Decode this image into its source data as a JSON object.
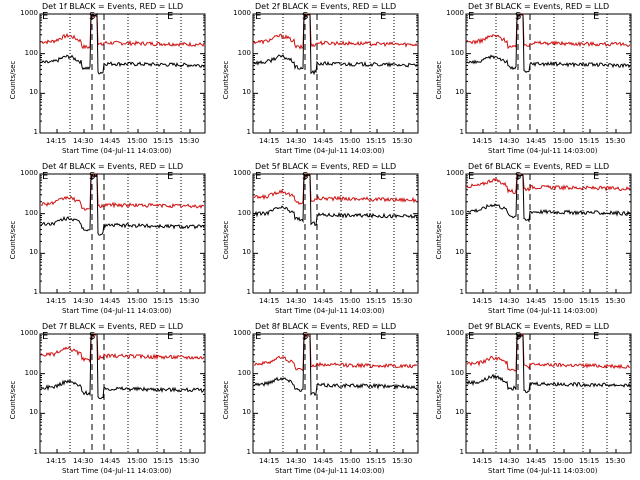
{
  "colors": {
    "events": "#000000",
    "lld": "#d01010",
    "frame": "#000000"
  },
  "chart_data": [
    {
      "type": "line",
      "title": "Det 1f BLACK = Events, RED = LLD",
      "xlabel": "Start Time (04-Jul-11 14:03:00)",
      "ylabel": "Counts/sec",
      "yscale": "log",
      "ylim": [
        1,
        1000
      ],
      "xticks": [
        "14:15",
        "14:30",
        "14:45",
        "15:00",
        "15:15",
        "15:30"
      ],
      "yticks": [
        "1",
        "10",
        "100",
        "1000"
      ],
      "markers": [
        "E",
        "S",
        "E"
      ],
      "events_level": 60,
      "lld_level": 200
    },
    {
      "type": "line",
      "title": "Det 2f BLACK = Events, RED = LLD",
      "xlabel": "Start Time (04-Jul-11 14:03:00)",
      "ylabel": "Counts/sec",
      "yscale": "log",
      "ylim": [
        1,
        1000
      ],
      "xticks": [
        "14:15",
        "14:30",
        "14:45",
        "15:00",
        "15:15",
        "15:30"
      ],
      "yticks": [
        "1",
        "10",
        "100",
        "1000"
      ],
      "markers": [
        "E",
        "S",
        "E"
      ],
      "events_level": 60,
      "lld_level": 200
    },
    {
      "type": "line",
      "title": "Det 3f BLACK = Events, RED = LLD",
      "xlabel": "Start Time (04-Jul-11 14:03:00)",
      "ylabel": "Counts/sec",
      "yscale": "log",
      "ylim": [
        1,
        1000
      ],
      "xticks": [
        "14:15",
        "14:30",
        "14:45",
        "15:00",
        "15:15",
        "15:30"
      ],
      "yticks": [
        "1",
        "10",
        "100",
        "1000"
      ],
      "markers": [
        "E",
        "S",
        "E"
      ],
      "events_level": 60,
      "lld_level": 200
    },
    {
      "type": "line",
      "title": "Det 4f BLACK = Events, RED = LLD",
      "xlabel": "Start Time (04-Jul-11 14:03:00)",
      "ylabel": "Counts/sec",
      "yscale": "log",
      "ylim": [
        1,
        1000
      ],
      "xticks": [
        "14:15",
        "14:30",
        "14:45",
        "15:00",
        "15:15",
        "15:30"
      ],
      "yticks": [
        "1",
        "10",
        "100",
        "1000"
      ],
      "markers": [
        "E",
        "S",
        "E"
      ],
      "events_level": 55,
      "lld_level": 180
    },
    {
      "type": "line",
      "title": "Det 5f BLACK = Events, RED = LLD",
      "xlabel": "Start Time (04-Jul-11 14:03:00)",
      "ylabel": "Counts/sec",
      "yscale": "log",
      "ylim": [
        1,
        1000
      ],
      "xticks": [
        "14:15",
        "14:30",
        "14:45",
        "15:00",
        "15:15",
        "15:30"
      ],
      "yticks": [
        "1",
        "10",
        "100",
        "1000"
      ],
      "markers": [
        "E",
        "S",
        "E"
      ],
      "events_level": 100,
      "lld_level": 260
    },
    {
      "type": "line",
      "title": "Det 6f BLACK = Events, RED = LLD",
      "xlabel": "Start Time (04-Jul-11 14:03:00)",
      "ylabel": "Counts/sec",
      "yscale": "log",
      "ylim": [
        1,
        1000
      ],
      "xticks": [
        "14:15",
        "14:30",
        "14:45",
        "15:00",
        "15:15",
        "15:30"
      ],
      "yticks": [
        "1",
        "10",
        "100",
        "1000"
      ],
      "markers": [
        "E",
        "S",
        "E"
      ],
      "events_level": 120,
      "lld_level": 500
    },
    {
      "type": "line",
      "title": "Det 7f BLACK = Events, RED = LLD",
      "xlabel": "Start Time (04-Jul-11 14:03:00)",
      "ylabel": "Counts/sec",
      "yscale": "log",
      "ylim": [
        1,
        1000
      ],
      "xticks": [
        "14:15",
        "14:30",
        "14:45",
        "15:00",
        "15:15",
        "15:30"
      ],
      "yticks": [
        "1",
        "10",
        "100",
        "1000"
      ],
      "markers": [
        "E",
        "S",
        "E"
      ],
      "events_level": 45,
      "lld_level": 300
    },
    {
      "type": "line",
      "title": "Det 8f BLACK = Events, RED = LLD",
      "xlabel": "Start Time (04-Jul-11 14:03:00)",
      "ylabel": "Counts/sec",
      "yscale": "log",
      "ylim": [
        1,
        1000
      ],
      "xticks": [
        "14:15",
        "14:30",
        "14:45",
        "15:00",
        "15:15",
        "15:30"
      ],
      "yticks": [
        "1",
        "10",
        "100",
        "1000"
      ],
      "markers": [
        "E",
        "S",
        "E"
      ],
      "events_level": 55,
      "lld_level": 180
    },
    {
      "type": "line",
      "title": "Det 9f BLACK = Events, RED = LLD",
      "xlabel": "Start Time (04-Jul-11 14:03:00)",
      "ylabel": "Counts/sec",
      "yscale": "log",
      "ylim": [
        1,
        1000
      ],
      "xticks": [
        "14:15",
        "14:30",
        "14:45",
        "15:00",
        "15:15",
        "15:30"
      ],
      "yticks": [
        "1",
        "10",
        "100",
        "1000"
      ],
      "markers": [
        "E",
        "S",
        "E"
      ],
      "events_level": 60,
      "lld_level": 180
    }
  ]
}
